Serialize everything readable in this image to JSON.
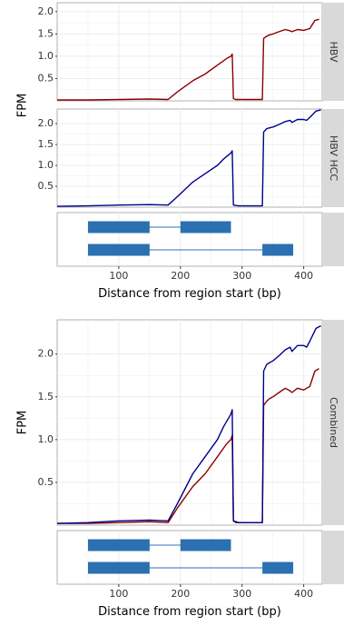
{
  "colors": {
    "hbv": "#8b0000",
    "hbv_hcc": "#00008b",
    "transcript": "#2b70b0",
    "strip": "#d9d9d9",
    "panel_border": "#b0b0b0",
    "grid": "#ececec",
    "text": "#333333"
  },
  "chart_data": [
    {
      "type": "line",
      "facet_label": "HBV",
      "ylabel": "FPM",
      "xlim": [
        0,
        430
      ],
      "ylim": [
        0,
        2.2
      ],
      "yticks": [
        "0.5",
        "1.0",
        "1.5",
        "2.0"
      ],
      "grid": true,
      "series": [
        {
          "color": "#8b0000",
          "x": [
            0,
            50,
            100,
            150,
            180,
            195,
            220,
            240,
            260,
            275,
            282,
            284,
            286,
            290,
            295,
            300,
            333,
            335,
            340,
            345,
            350,
            360,
            370,
            378,
            381,
            390,
            400,
            410,
            418,
            425
          ],
          "y": [
            0.02,
            0.02,
            0.03,
            0.04,
            0.03,
            0.2,
            0.45,
            0.6,
            0.8,
            0.95,
            1.0,
            1.05,
            0.05,
            0.03,
            0.03,
            0.03,
            0.03,
            1.4,
            1.45,
            1.48,
            1.5,
            1.55,
            1.6,
            1.57,
            1.55,
            1.6,
            1.58,
            1.62,
            1.8,
            1.83
          ]
        }
      ]
    },
    {
      "type": "line",
      "facet_label": "HBV HCC",
      "ylabel": "FPM",
      "xlim": [
        0,
        430
      ],
      "ylim": [
        0,
        2.35
      ],
      "yticks": [
        "0.5",
        "1.0",
        "1.5",
        "2.0"
      ],
      "grid": true,
      "series": [
        {
          "color": "#00008b",
          "x": [
            0,
            50,
            100,
            150,
            180,
            195,
            220,
            240,
            260,
            270,
            278,
            282,
            284,
            286,
            290,
            295,
            300,
            333,
            335,
            340,
            350,
            360,
            370,
            378,
            381,
            390,
            400,
            405,
            410,
            420,
            428
          ],
          "y": [
            0.02,
            0.03,
            0.05,
            0.06,
            0.05,
            0.25,
            0.6,
            0.8,
            1.0,
            1.15,
            1.25,
            1.3,
            1.35,
            0.05,
            0.04,
            0.03,
            0.03,
            0.03,
            1.8,
            1.88,
            1.92,
            1.98,
            2.05,
            2.08,
            2.03,
            2.1,
            2.1,
            2.08,
            2.15,
            2.3,
            2.33
          ]
        }
      ]
    },
    {
      "type": "line",
      "facet_label": "Combined",
      "ylabel": "FPM",
      "xlabel": "Distance from region start (bp)",
      "xlim": [
        0,
        430
      ],
      "ylim": [
        0,
        2.4
      ],
      "xticks": [
        "100",
        "200",
        "300",
        "400"
      ],
      "yticks": [
        "0.5",
        "1.0",
        "1.5",
        "2.0"
      ],
      "grid": true,
      "series": [
        {
          "color": "#8b0000",
          "x": [
            0,
            50,
            100,
            150,
            180,
            195,
            220,
            240,
            260,
            275,
            282,
            284,
            286,
            290,
            295,
            300,
            333,
            335,
            340,
            345,
            350,
            360,
            370,
            378,
            381,
            390,
            400,
            410,
            418,
            425
          ],
          "y": [
            0.02,
            0.02,
            0.03,
            0.04,
            0.03,
            0.2,
            0.45,
            0.6,
            0.8,
            0.95,
            1.0,
            1.05,
            0.05,
            0.03,
            0.03,
            0.03,
            0.03,
            1.4,
            1.45,
            1.48,
            1.5,
            1.55,
            1.6,
            1.57,
            1.55,
            1.6,
            1.58,
            1.62,
            1.8,
            1.83
          ]
        },
        {
          "color": "#00008b",
          "x": [
            0,
            50,
            100,
            150,
            180,
            195,
            220,
            240,
            260,
            270,
            278,
            282,
            284,
            286,
            290,
            295,
            300,
            333,
            335,
            340,
            350,
            360,
            370,
            378,
            381,
            390,
            400,
            405,
            410,
            420,
            428
          ],
          "y": [
            0.02,
            0.03,
            0.05,
            0.06,
            0.05,
            0.25,
            0.6,
            0.8,
            1.0,
            1.15,
            1.25,
            1.3,
            1.35,
            0.05,
            0.04,
            0.03,
            0.03,
            0.03,
            1.8,
            1.88,
            1.92,
            1.98,
            2.05,
            2.08,
            2.03,
            2.1,
            2.1,
            2.08,
            2.15,
            2.3,
            2.33
          ]
        }
      ]
    }
  ],
  "transcripts": [
    {
      "exons": [
        [
          50,
          150
        ],
        [
          200,
          282
        ]
      ]
    },
    {
      "exons": [
        [
          50,
          150
        ],
        [
          333,
          383
        ]
      ]
    }
  ],
  "x_axis": {
    "label": "Distance from region start (bp)",
    "ticks": [
      "100",
      "200",
      "300",
      "400"
    ]
  }
}
